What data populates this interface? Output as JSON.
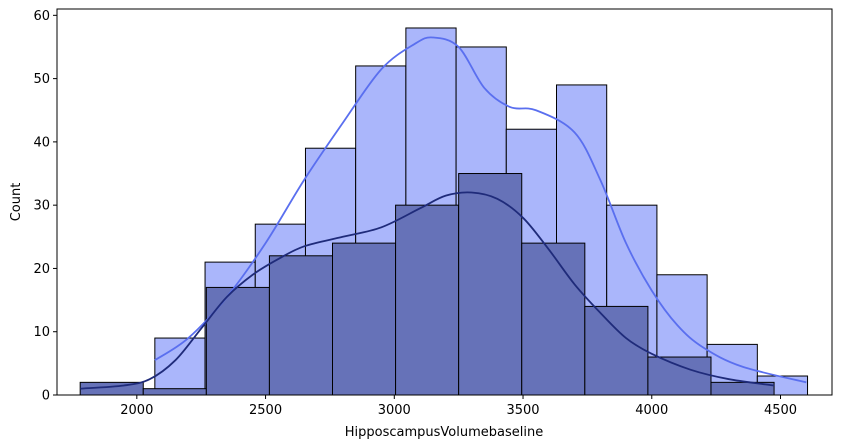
{
  "chart_data": {
    "type": "histogram",
    "xlabel": "HipposcampusVolumebaseline",
    "ylabel": "Count",
    "xlim": [
      1690,
      4700
    ],
    "ylim": [
      0,
      61
    ],
    "x_ticks": [
      2000,
      2500,
      3000,
      3500,
      4000,
      4500
    ],
    "y_ticks": [
      0,
      10,
      20,
      30,
      40,
      50,
      60
    ],
    "grid": false,
    "legend": "none",
    "series": [
      {
        "fill_color": "#aab6fb",
        "line_color": "#5a6fef",
        "bins": [
          {
            "x0": 2070,
            "x1": 2265,
            "count": 9
          },
          {
            "x0": 2265,
            "x1": 2460,
            "count": 21
          },
          {
            "x0": 2460,
            "x1": 2655,
            "count": 27
          },
          {
            "x0": 2655,
            "x1": 2850,
            "count": 39
          },
          {
            "x0": 2850,
            "x1": 3045,
            "count": 52
          },
          {
            "x0": 3045,
            "x1": 3240,
            "count": 58
          },
          {
            "x0": 3240,
            "x1": 3435,
            "count": 55
          },
          {
            "x0": 3435,
            "x1": 3630,
            "count": 42
          },
          {
            "x0": 3630,
            "x1": 3825,
            "count": 49
          },
          {
            "x0": 3825,
            "x1": 4020,
            "count": 30
          },
          {
            "x0": 4020,
            "x1": 4215,
            "count": 19
          },
          {
            "x0": 4215,
            "x1": 4410,
            "count": 8
          },
          {
            "x0": 4410,
            "x1": 4605,
            "count": 3
          }
        ],
        "kde": [
          [
            2070,
            5.5
          ],
          [
            2200,
            9
          ],
          [
            2350,
            15.5
          ],
          [
            2500,
            24
          ],
          [
            2650,
            34
          ],
          [
            2800,
            43
          ],
          [
            2950,
            51.5
          ],
          [
            3080,
            55.5
          ],
          [
            3150,
            56.5
          ],
          [
            3250,
            55
          ],
          [
            3350,
            48.5
          ],
          [
            3450,
            45.5
          ],
          [
            3550,
            45
          ],
          [
            3700,
            41.5
          ],
          [
            3800,
            34
          ],
          [
            3900,
            24
          ],
          [
            4000,
            16.5
          ],
          [
            4100,
            11
          ],
          [
            4200,
            7.5
          ],
          [
            4350,
            4.5
          ],
          [
            4600,
            2
          ]
        ]
      },
      {
        "fill_color": "#6672b8",
        "line_color": "#1f2b7a",
        "bins": [
          {
            "x0": 1780,
            "x1": 2025,
            "count": 2
          },
          {
            "x0": 2025,
            "x1": 2270,
            "count": 1
          },
          {
            "x0": 2270,
            "x1": 2515,
            "count": 17
          },
          {
            "x0": 2515,
            "x1": 2760,
            "count": 22
          },
          {
            "x0": 2760,
            "x1": 3005,
            "count": 24
          },
          {
            "x0": 3005,
            "x1": 3250,
            "count": 30
          },
          {
            "x0": 3250,
            "x1": 3495,
            "count": 35
          },
          {
            "x0": 3495,
            "x1": 3740,
            "count": 24
          },
          {
            "x0": 3740,
            "x1": 3985,
            "count": 14
          },
          {
            "x0": 3985,
            "x1": 4230,
            "count": 6
          },
          {
            "x0": 4230,
            "x1": 4475,
            "count": 2
          }
        ],
        "kde": [
          [
            1780,
            1
          ],
          [
            1950,
            1.5
          ],
          [
            2050,
            2.5
          ],
          [
            2150,
            5.5
          ],
          [
            2250,
            10.5
          ],
          [
            2350,
            15.5
          ],
          [
            2450,
            19
          ],
          [
            2550,
            21.5
          ],
          [
            2650,
            23.5
          ],
          [
            2800,
            25
          ],
          [
            2950,
            26.5
          ],
          [
            3100,
            29.5
          ],
          [
            3200,
            31.5
          ],
          [
            3300,
            32
          ],
          [
            3400,
            31
          ],
          [
            3500,
            28
          ],
          [
            3600,
            23
          ],
          [
            3700,
            17.5
          ],
          [
            3800,
            13
          ],
          [
            3900,
            9
          ],
          [
            4000,
            6.5
          ],
          [
            4150,
            4
          ],
          [
            4300,
            2.5
          ],
          [
            4475,
            1.5
          ]
        ]
      }
    ]
  }
}
